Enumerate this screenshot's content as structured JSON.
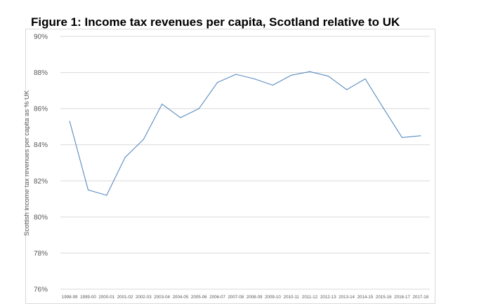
{
  "figure": {
    "title": "Figure 1: Income tax revenues per capita, Scotland relative to UK"
  },
  "chart_data": {
    "type": "line",
    "title": "Figure 1: Income tax revenues per capita, Scotland relative to UK",
    "xlabel": "",
    "ylabel": "Scottish income tax revenues per capita as % UK",
    "categories": [
      "1998-99",
      "1999-00",
      "2000-01",
      "2001-02",
      "2002-03",
      "2003-04",
      "2004-05",
      "2005-06",
      "2006-07",
      "2007-08",
      "2008-09",
      "2009-10",
      "2010-11",
      "2011-12",
      "2012-13",
      "2013-14",
      "2014-15",
      "2015-16",
      "2016-17",
      "2017-18"
    ],
    "series": [
      {
        "values": [
          85.3,
          81.5,
          81.2,
          83.3,
          84.3,
          86.25,
          85.5,
          86.0,
          87.45,
          87.9,
          87.65,
          87.3,
          87.85,
          88.05,
          87.8,
          87.05,
          87.65,
          86.0,
          84.4,
          84.5
        ],
        "color": "#5b8cc0"
      }
    ],
    "ylim": [
      76,
      90
    ],
    "yticks": [
      "76%",
      "78%",
      "80%",
      "82%",
      "84%",
      "86%",
      "88%",
      "90%"
    ],
    "ytick_values": [
      76,
      78,
      80,
      82,
      84,
      86,
      88,
      90
    ],
    "grid": true,
    "gridline_color": "#d9d9d9",
    "legend": "none"
  }
}
